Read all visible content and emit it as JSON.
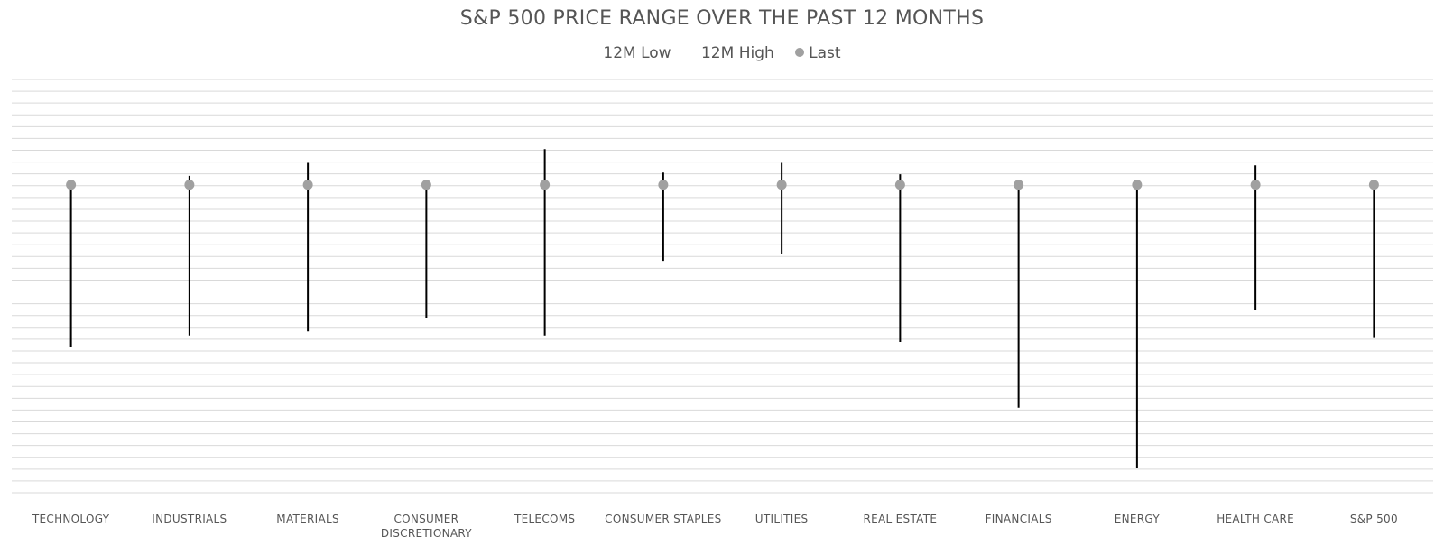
{
  "chart_data": {
    "type": "range",
    "title": "S&P 500 PRICE RANGE OVER THE PAST 12 MONTHS",
    "legend": {
      "placement": "top-center",
      "items": [
        {
          "label": "12M Low",
          "marker": "none"
        },
        {
          "label": "12M High",
          "marker": "none"
        },
        {
          "label": "Last",
          "marker": "dot"
        }
      ]
    },
    "normalized_last": 100,
    "ylim": [
      62,
      113
    ],
    "grid": true,
    "categories": [
      [
        "TECHNOLOGY"
      ],
      [
        "INDUSTRIALS"
      ],
      [
        "MATERIALS"
      ],
      [
        "CONSUMER",
        "DISCRETIONARY"
      ],
      [
        "TELECOMS"
      ],
      [
        "CONSUMER STAPLES"
      ],
      [
        "UTILITIES"
      ],
      [
        "REAL ESTATE"
      ],
      [
        "FINANCIALS"
      ],
      [
        "ENERGY"
      ],
      [
        "HEALTH CARE"
      ],
      [
        "S&P 500"
      ]
    ],
    "series": [
      {
        "name": "12M Low",
        "values": [
          80,
          81.4,
          81.9,
          83.6,
          81.4,
          90.6,
          91.4,
          80.6,
          72.5,
          65,
          84.6,
          81.2
        ]
      },
      {
        "name": "12M High",
        "values": [
          100,
          101.1,
          102.7,
          100,
          104.4,
          101.5,
          102.7,
          101.3,
          100,
          100,
          102.4,
          100
        ]
      },
      {
        "name": "Last",
        "values": [
          100,
          100,
          100,
          100,
          100,
          100,
          100,
          100,
          100,
          100,
          100,
          100
        ]
      }
    ],
    "colors": {
      "range_line": "#000000",
      "last_marker": "#a0a0a0",
      "grid": "#d9d9d9",
      "text": "#555555"
    }
  }
}
